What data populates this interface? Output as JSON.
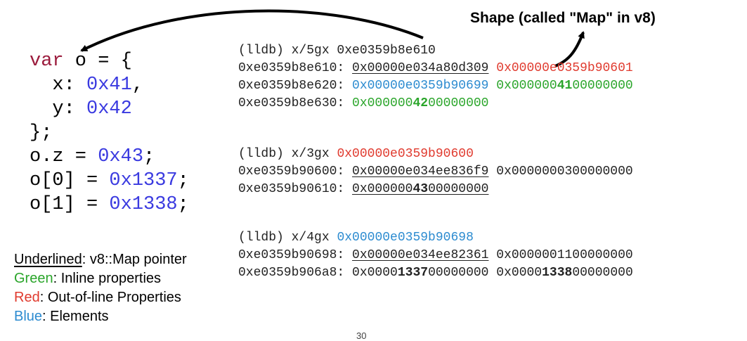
{
  "shape_title": "Shape (called \"Map\" in v8)",
  "code": {
    "line1": {
      "kw": "var",
      "rest": " o = {"
    },
    "line2": {
      "pre": "  x: ",
      "num": "0x41",
      "post": ","
    },
    "line3": {
      "pre": "  y: ",
      "num": "0x42",
      "post": ""
    },
    "line4": "};",
    "line5": {
      "pre": "o.z = ",
      "num": "0x43",
      "post": ";"
    },
    "line6": {
      "pre": "o[0] = ",
      "num": "0x1337",
      "post": ";"
    },
    "line7": {
      "pre": "o[1] = ",
      "num": "0x1338",
      "post": ";"
    }
  },
  "block1": {
    "cmd": "(lldb) x/5gx 0xe0359b8e610",
    "r1_addr": "0xe0359b8e610: ",
    "r1_a": "0x00000e034a80d309",
    "r1_b": "0x00000e0359b90601",
    "r2_addr": "0xe0359b8e620: ",
    "r2_a": "0x00000e0359b90699",
    "r2_b_pre": "0x000000",
    "r2_b_bold": "41",
    "r2_b_post": "00000000",
    "r3_addr": "0xe0359b8e630: ",
    "r3_a_pre": "0x000000",
    "r3_a_bold": "42",
    "r3_a_post": "00000000"
  },
  "block2": {
    "cmd_pre": "(lldb) x/3gx ",
    "cmd_addr": "0x00000e0359b90600",
    "r1_addr": "0xe0359b90600: ",
    "r1_a": "0x00000e034ee836f9",
    "r1_b": "0x0000000300000000",
    "r2_addr": "0xe0359b90610: ",
    "r2_a_pre": "0x000000",
    "r2_a_bold": "43",
    "r2_a_post": "00000000"
  },
  "block3": {
    "cmd_pre": "(lldb) x/4gx ",
    "cmd_addr": "0x00000e0359b90698",
    "r1_addr": "0xe0359b90698: ",
    "r1_a": "0x00000e034ee82361",
    "r1_b": "0x0000001100000000",
    "r2_addr": "0xe0359b906a8: ",
    "r2_a_pre": "0x0000",
    "r2_a_bold": "1337",
    "r2_a_post": "00000000",
    "r2_b_pre": "0x0000",
    "r2_b_bold": "1338",
    "r2_b_post": "00000000"
  },
  "legend": {
    "underlined_key": "Underlined",
    "underlined_val": ": v8::Map pointer",
    "green_key": "Green",
    "green_val": ": Inline properties",
    "red_key": "Red",
    "red_val": ": Out-of-line Properties",
    "blue_key": "Blue",
    "blue_val": ": Elements"
  },
  "page_number": "30",
  "colors": {
    "keyword": "#9b1b3c",
    "number": "#3a3ae0",
    "red": "#e03a2e",
    "green": "#2aa52a",
    "blue": "#2c8bd0"
  }
}
